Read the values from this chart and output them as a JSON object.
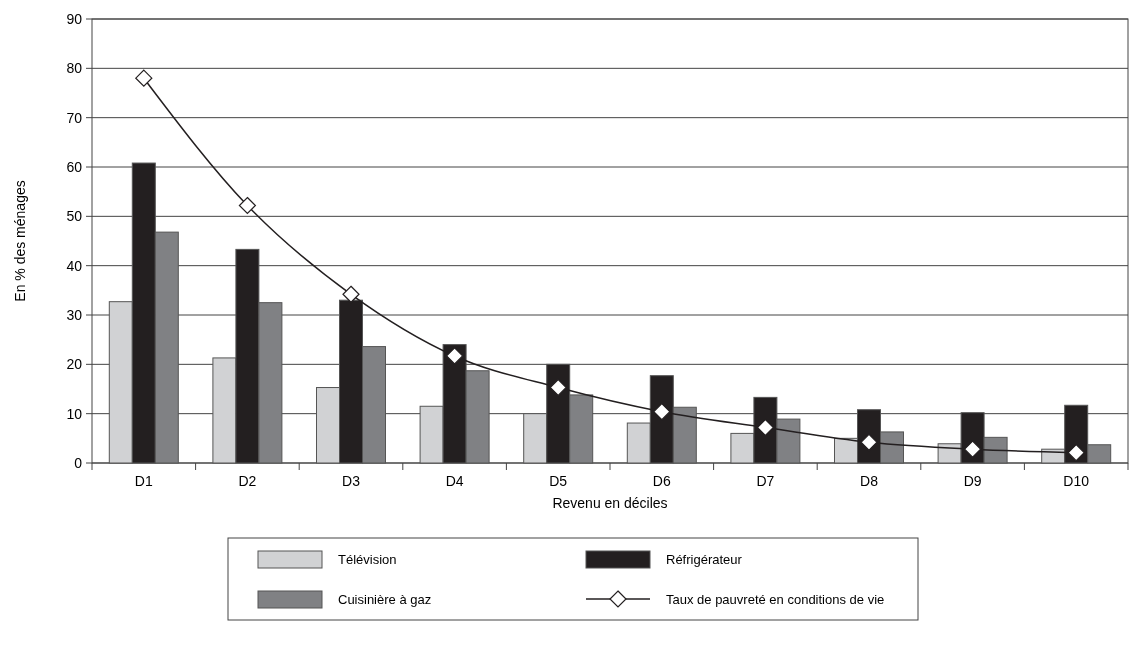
{
  "chart_data": {
    "type": "bar",
    "xlabel": "Revenu en déciles",
    "ylabel": "En % des ménages",
    "categories": [
      "D1",
      "D2",
      "D3",
      "D4",
      "D5",
      "D6",
      "D7",
      "D8",
      "D9",
      "D10"
    ],
    "series": [
      {
        "name": "Télévision",
        "color": "#d1d2d4",
        "values": [
          32.7,
          21.3,
          15.3,
          11.5,
          10,
          8.1,
          6,
          5,
          3.9,
          2.8
        ]
      },
      {
        "name": "Réfrigérateur",
        "color": "#231f20",
        "values": [
          60.8,
          43.3,
          33,
          24,
          20,
          17.7,
          13.3,
          10.8,
          10.2,
          11.7
        ]
      },
      {
        "name": "Cuisinière à gaz",
        "color": "#808184",
        "values": [
          46.8,
          32.5,
          23.6,
          18.7,
          13.8,
          11.3,
          8.9,
          6.3,
          5.2,
          3.7
        ]
      },
      {
        "name": "Taux de pauvreté en conditions de vie",
        "type": "line",
        "color": "#231f20",
        "marker": "diamond",
        "values": [
          78,
          52.2,
          34.2,
          21.7,
          15.3,
          10.4,
          7.2,
          4.2,
          2.8,
          2.1
        ]
      }
    ],
    "ylim": [
      0,
      90
    ],
    "yticks": [
      0,
      10,
      20,
      30,
      40,
      50,
      60,
      70,
      80,
      90
    ],
    "grid": "y",
    "legend": "bottom"
  }
}
